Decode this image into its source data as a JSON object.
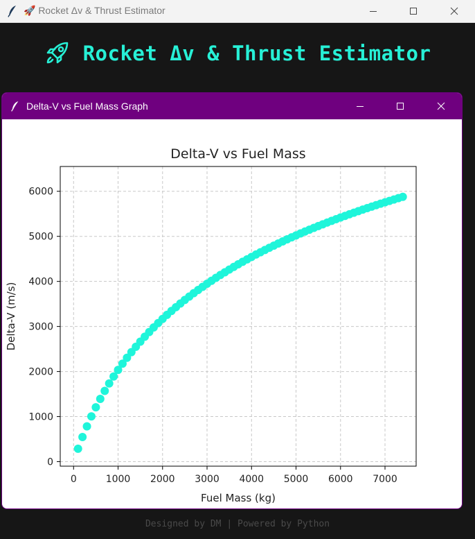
{
  "window": {
    "title": "🚀 Rocket Δv & Thrust Estimator",
    "app_icon": "feather-icon"
  },
  "header": {
    "icon": "rocket-icon",
    "title": "Rocket Δv & Thrust Estimator",
    "color": "#27f0d6"
  },
  "graph_window": {
    "title": "Delta-V vs Fuel Mass Graph",
    "titlebar_color": "#6f007f"
  },
  "footer": {
    "text": "Designed by DM | Powered by Python"
  },
  "chart_data": {
    "type": "scatter",
    "title": "Delta-V vs Fuel Mass",
    "xlabel": "Fuel Mass (kg)",
    "ylabel": "Delta-V (m/s)",
    "xlim": [
      -300,
      7700
    ],
    "ylim": [
      -100,
      6550
    ],
    "xticks": [
      0,
      1000,
      2000,
      3000,
      4000,
      5000,
      6000,
      7000
    ],
    "yticks": [
      0,
      1000,
      2000,
      3000,
      4000,
      5000,
      6000
    ],
    "grid": true,
    "marker_color": "#1ff5da",
    "series": [
      {
        "x": [
          100,
          200,
          300,
          400,
          500,
          600,
          700,
          800,
          900,
          1000,
          1100,
          1200,
          1300,
          1400,
          1500,
          1600,
          1700,
          1800,
          1900,
          2000,
          2100,
          2200,
          2300,
          2400,
          2500,
          2600,
          2700,
          2800,
          2900,
          3000,
          3100,
          3200,
          3300,
          3400,
          3500,
          3600,
          3700,
          3800,
          3900,
          4000,
          4100,
          4200,
          4300,
          4400,
          4500,
          4600,
          4700,
          4800,
          4900,
          5000,
          5100,
          5200,
          5300,
          5400,
          5500,
          5600,
          5700,
          5800,
          5900,
          6000,
          6100,
          6200,
          6300,
          6400,
          6500,
          6600,
          6700,
          6800,
          6900,
          7000,
          7100,
          7200,
          7300,
          7400
        ],
        "y": [
          286,
          546,
          784,
          1004,
          1206,
          1394,
          1570,
          1735,
          1890,
          2036,
          2174,
          2305,
          2430,
          2549,
          2663,
          2772,
          2877,
          2978,
          3074,
          3167,
          3257,
          3344,
          3428,
          3509,
          3588,
          3664,
          3738,
          3810,
          3880,
          3948,
          4014,
          4079,
          4142,
          4203,
          4263,
          4322,
          4379,
          4435,
          4490,
          4543,
          4596,
          4647,
          4697,
          4746,
          4794,
          4841,
          4887,
          4933,
          4977,
          5021,
          5064,
          5106,
          5147,
          5188,
          5228,
          5267,
          5306,
          5344,
          5381,
          5418,
          5454,
          5489,
          5524,
          5559,
          5593,
          5626,
          5659,
          5692,
          5724,
          5755,
          5786,
          5817,
          5847,
          5877
        ]
      }
    ]
  }
}
